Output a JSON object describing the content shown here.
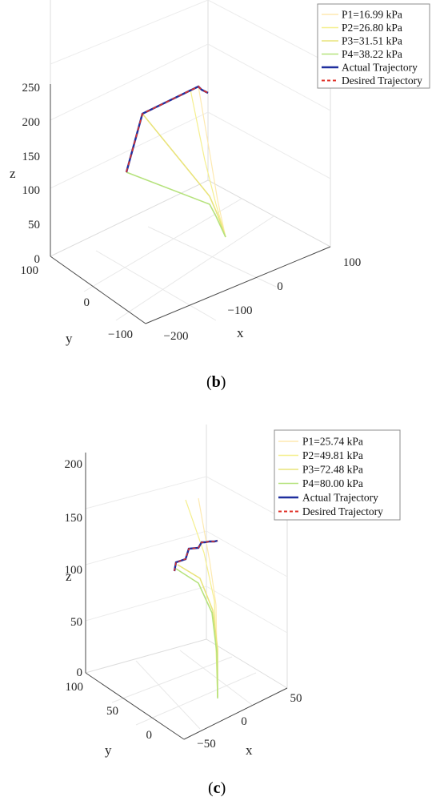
{
  "chart_data": [
    {
      "type": "line",
      "caption_letter": "b",
      "xlabel": "x",
      "ylabel": "y",
      "zlabel": "z",
      "x_ticks": [
        "−200",
        "−100",
        "0",
        "100"
      ],
      "y_ticks": [
        "−100",
        "0",
        "100"
      ],
      "z_ticks": [
        "0",
        "50",
        "100",
        "150",
        "200",
        "250"
      ],
      "legend": {
        "position": "top-right",
        "entries": [
          {
            "label": "P1=16.99 kPa",
            "color": "#fde9b0",
            "style": "solid"
          },
          {
            "label": "P2=26.80 kPa",
            "color": "#f5ef8e",
            "style": "solid"
          },
          {
            "label": "P3=31.51 kPa",
            "color": "#e9e37a",
            "style": "solid"
          },
          {
            "label": "P4=38.22 kPa",
            "color": "#b5e27c",
            "style": "solid"
          },
          {
            "label": "Actual Trajectory",
            "color": "#1f2f9e",
            "style": "solid"
          },
          {
            "label": "Desired Trajectory",
            "color": "#e0332a",
            "style": "dashed"
          }
        ]
      }
    },
    {
      "type": "line",
      "caption_letter": "c",
      "xlabel": "x",
      "ylabel": "y",
      "zlabel": "z",
      "x_ticks": [
        "−50",
        "0",
        "50"
      ],
      "y_ticks": [
        "0",
        "50",
        "100"
      ],
      "z_ticks": [
        "0",
        "50",
        "100",
        "150",
        "200"
      ],
      "legend": {
        "position": "top-right",
        "entries": [
          {
            "label": "P1=25.74 kPa",
            "color": "#fde9b0",
            "style": "solid"
          },
          {
            "label": "P2=49.81 kPa",
            "color": "#f5ef8e",
            "style": "solid"
          },
          {
            "label": "P3=72.48 kPa",
            "color": "#e9e37a",
            "style": "solid"
          },
          {
            "label": "P4=80.00 kPa",
            "color": "#b5e27c",
            "style": "solid"
          },
          {
            "label": "Actual Trajectory",
            "color": "#1f2f9e",
            "style": "solid"
          },
          {
            "label": "Desired Trajectory",
            "color": "#e0332a",
            "style": "dashed"
          }
        ]
      }
    }
  ]
}
